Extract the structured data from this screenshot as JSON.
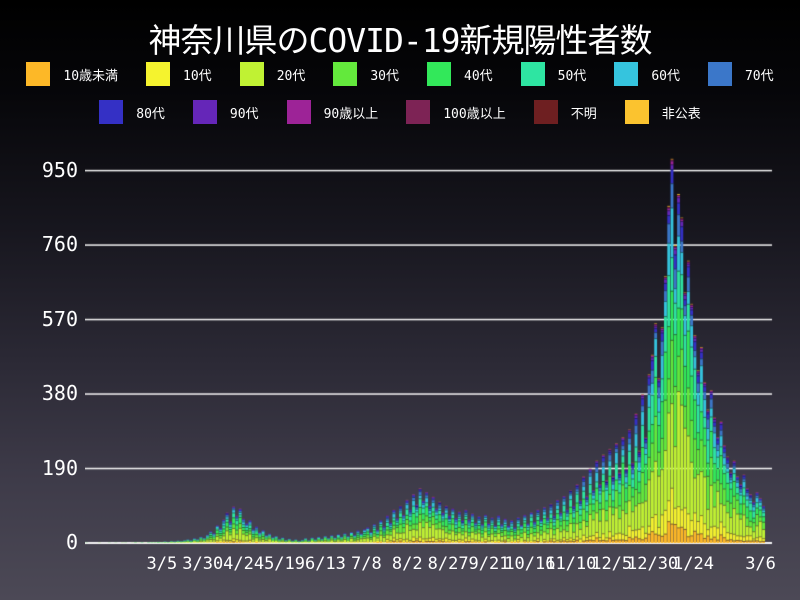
{
  "title": "神奈川県のCOVID-19新規陽性者数",
  "colors": {
    "background_top": "#000000",
    "background_bottom": "#4c4956",
    "grid": "#ffffff",
    "text": "#ffffff",
    "segment_outline": "rgba(12,12,24,0.5)"
  },
  "legend": {
    "rows": [
      [
        {
          "label": "10歳未満",
          "color": "#fdb827"
        },
        {
          "label": "10代",
          "color": "#f5f32e"
        },
        {
          "label": "20代",
          "color": "#c0f233"
        },
        {
          "label": "30代",
          "color": "#63e93c"
        },
        {
          "label": "40代",
          "color": "#32e85a"
        },
        {
          "label": "50代",
          "color": "#2ee5a2"
        },
        {
          "label": "60代",
          "color": "#35c4de"
        },
        {
          "label": "70代",
          "color": "#3b77c9"
        }
      ],
      [
        {
          "label": "80代",
          "color": "#3430c5"
        },
        {
          "label": "90代",
          "color": "#6526b8"
        },
        {
          "label": "90歳以上",
          "color": "#9d2397"
        },
        {
          "label": "100歳以上",
          "color": "#7d2355"
        },
        {
          "label": "不明",
          "color": "#6e1f21"
        },
        {
          "label": "非公表",
          "color": "#fbc32f"
        }
      ]
    ]
  },
  "chart_data": {
    "type": "bar",
    "subtype": "stacked-daily",
    "title": "神奈川県のCOVID-19新規陽性者数",
    "xlabel": "",
    "ylabel": "",
    "ylim": [
      0,
      1000
    ],
    "grid": "horizontal-white",
    "legend_position": "top",
    "y_ticks": [
      0,
      190,
      380,
      570,
      760,
      950
    ],
    "x_ticks": [
      {
        "label": "3/5",
        "day": 47
      },
      {
        "label": "3/30",
        "day": 72
      },
      {
        "label": "4/24",
        "day": 97
      },
      {
        "label": "5/19",
        "day": 122
      },
      {
        "label": "6/13",
        "day": 147
      },
      {
        "label": "7/8",
        "day": 172
      },
      {
        "label": "8/2",
        "day": 197
      },
      {
        "label": "8/27",
        "day": 222
      },
      {
        "label": "9/21",
        "day": 247
      },
      {
        "label": "10/16",
        "day": 272
      },
      {
        "label": "11/10",
        "day": 297
      },
      {
        "label": "12/5",
        "day": 322
      },
      {
        "label": "12/30",
        "day": 347
      },
      {
        "label": "1/24",
        "day": 372
      },
      {
        "label": "3/6",
        "day": 413
      }
    ],
    "axis_days_total": 420,
    "bar_step_days": 2,
    "series": [
      {
        "name": "10歳未満",
        "color": "#fdb827",
        "share": 0.046
      },
      {
        "name": "10代",
        "color": "#f5f32e",
        "share": 0.075
      },
      {
        "name": "20代",
        "color": "#c0f233",
        "share": 0.245
      },
      {
        "name": "30代",
        "color": "#63e93c",
        "share": 0.165
      },
      {
        "name": "40代",
        "color": "#32e85a",
        "share": 0.15
      },
      {
        "name": "50代",
        "color": "#2ee5a2",
        "share": 0.12
      },
      {
        "name": "60代",
        "color": "#35c4de",
        "share": 0.08
      },
      {
        "name": "70代",
        "color": "#3b77c9",
        "share": 0.05
      },
      {
        "name": "80代",
        "color": "#3430c5",
        "share": 0.035
      },
      {
        "name": "90代",
        "color": "#6526b8",
        "share": 0.015
      },
      {
        "name": "90歳以上",
        "color": "#9d2397",
        "share": 0.006
      },
      {
        "name": "100歳以上",
        "color": "#7d2355",
        "share": 0.001
      },
      {
        "name": "不明",
        "color": "#6e1f21",
        "share": 0.002
      },
      {
        "name": "非公表",
        "color": "#fbc32f",
        "share": 0.002
      }
    ],
    "totals": [
      1,
      0,
      0,
      0,
      1,
      0,
      0,
      1,
      0,
      1,
      0,
      1,
      1,
      0,
      1,
      2,
      1,
      2,
      1,
      2,
      2,
      2,
      3,
      2,
      4,
      3,
      5,
      4,
      6,
      5,
      7,
      9,
      7,
      12,
      10,
      16,
      13,
      21,
      30,
      25,
      45,
      38,
      60,
      78,
      55,
      93,
      70,
      88,
      62,
      50,
      58,
      35,
      42,
      28,
      33,
      20,
      24,
      15,
      18,
      10,
      14,
      8,
      11,
      6,
      9,
      5,
      8,
      12,
      7,
      14,
      9,
      16,
      11,
      18,
      13,
      20,
      14,
      22,
      16,
      25,
      18,
      28,
      21,
      32,
      24,
      35,
      40,
      28,
      48,
      34,
      58,
      42,
      70,
      52,
      85,
      64,
      95,
      72,
      110,
      85,
      125,
      98,
      140,
      108,
      130,
      95,
      118,
      88,
      105,
      78,
      95,
      70,
      88,
      64,
      80,
      58,
      85,
      60,
      75,
      52,
      68,
      48,
      72,
      50,
      65,
      45,
      70,
      48,
      62,
      44,
      58,
      40,
      65,
      46,
      72,
      50,
      78,
      54,
      85,
      60,
      92,
      65,
      100,
      70,
      110,
      78,
      120,
      85,
      135,
      95,
      150,
      108,
      170,
      120,
      190,
      135,
      210,
      150,
      225,
      160,
      240,
      170,
      255,
      180,
      270,
      190,
      290,
      205,
      330,
      235,
      380,
      270,
      430,
      480,
      560,
      420,
      550,
      680,
      860,
      980,
      760,
      890,
      830,
      640,
      720,
      610,
      530,
      440,
      500,
      410,
      340,
      390,
      320,
      270,
      310,
      250,
      220,
      180,
      210,
      170,
      150,
      175,
      140,
      125,
      105,
      130,
      115,
      95
    ]
  }
}
